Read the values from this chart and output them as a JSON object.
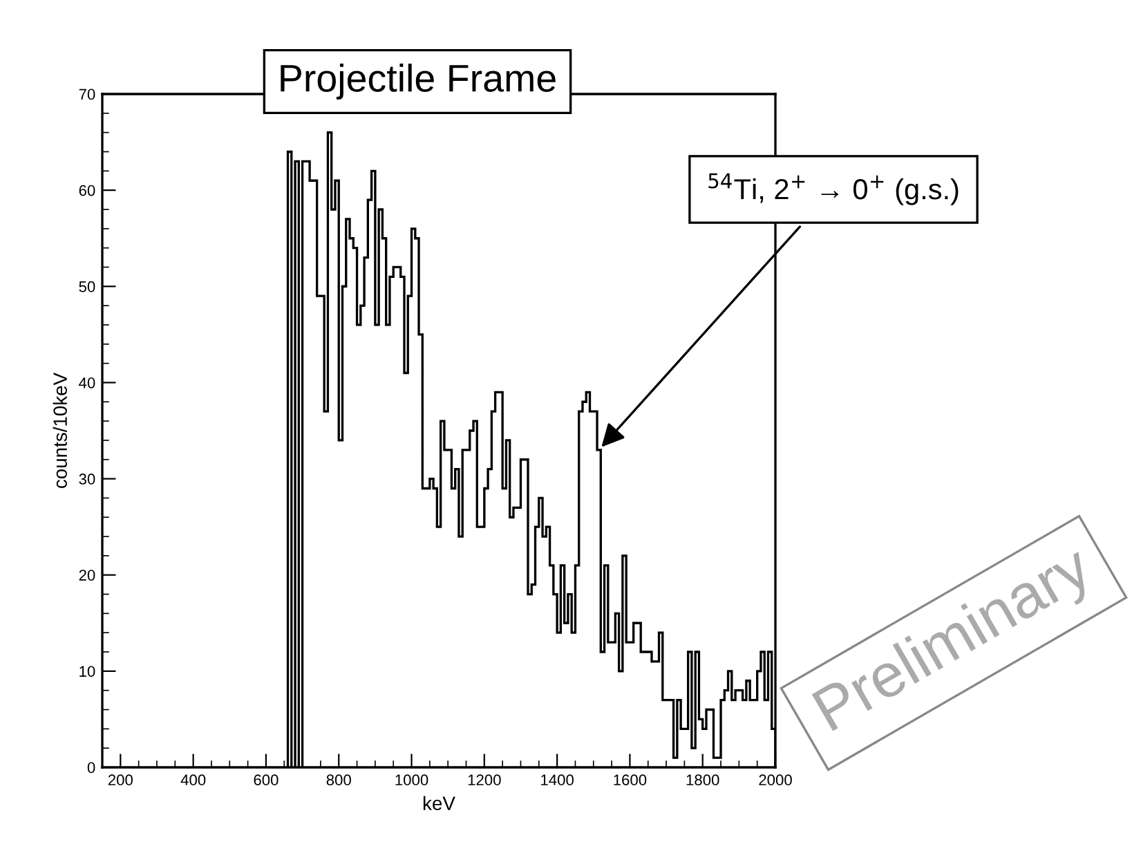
{
  "chart_data": {
    "type": "histogram",
    "title": "Projectile Frame",
    "xlabel": "keV",
    "ylabel": "counts/10keV",
    "bins": [
      660,
      670,
      680,
      690,
      700,
      710,
      720,
      730,
      740,
      750,
      760,
      770,
      780,
      790,
      800,
      810,
      820,
      830,
      840,
      850,
      860,
      870,
      880,
      890,
      900,
      910,
      920,
      930,
      940,
      950,
      960,
      970,
      980,
      990,
      1000,
      1010,
      1020,
      1030,
      1040,
      1050,
      1060,
      1070,
      1080,
      1090,
      1100,
      1110,
      1120,
      1130,
      1140,
      1150,
      1160,
      1170,
      1180,
      1190,
      1200,
      1210,
      1220,
      1230,
      1240,
      1250,
      1260,
      1270,
      1280,
      1290,
      1300,
      1310,
      1320,
      1330,
      1340,
      1350,
      1360,
      1370,
      1380,
      1390,
      1400,
      1410,
      1420,
      1430,
      1440,
      1450,
      1460,
      1470,
      1480,
      1490,
      1500,
      1510,
      1520,
      1530,
      1540,
      1550,
      1560,
      1570,
      1580,
      1590,
      1600,
      1610,
      1620,
      1630,
      1640,
      1650,
      1660,
      1670,
      1680,
      1690,
      1700,
      1710,
      1720,
      1730,
      1740,
      1750,
      1760,
      1770,
      1780,
      1790,
      1800,
      1810,
      1820,
      1830,
      1840,
      1850,
      1860,
      1870,
      1880,
      1890,
      1900,
      1910,
      1920,
      1930,
      1940,
      1950,
      1960,
      1970,
      1980,
      1990,
      2000
    ],
    "values": [
      64,
      null,
      63,
      null,
      63,
      63,
      61,
      61,
      49,
      49,
      37,
      66,
      58,
      61,
      34,
      50,
      57,
      55,
      54,
      46,
      48,
      53,
      59,
      62,
      46,
      58,
      55,
      46,
      51,
      52,
      52,
      51,
      41,
      49,
      56,
      55,
      45,
      29,
      29,
      30,
      29,
      25,
      36,
      33,
      33,
      29,
      31,
      24,
      33,
      33,
      35,
      36,
      25,
      25,
      29,
      31,
      37,
      39,
      39,
      29,
      34,
      26,
      27,
      27,
      32,
      32,
      18,
      19,
      25,
      28,
      24,
      25,
      21,
      18,
      14,
      21,
      15,
      18,
      14,
      21,
      37,
      38,
      39,
      37,
      37,
      33,
      12,
      21,
      13,
      13,
      16,
      10,
      22,
      13,
      13,
      15,
      15,
      12,
      12,
      12,
      11,
      11,
      14,
      7,
      7,
      7,
      1,
      7,
      4,
      4,
      12,
      2,
      12,
      5,
      4,
      6,
      6,
      1,
      1,
      7,
      8,
      10,
      7,
      8,
      8,
      7,
      9,
      7,
      7,
      10,
      12,
      7,
      12,
      4
    ],
    "color": "#000000",
    "xlim": [
      150,
      2000
    ],
    "xticks": [
      200,
      400,
      600,
      800,
      1000,
      1200,
      1400,
      1600,
      1800,
      2000
    ],
    "ylim": [
      0,
      70
    ],
    "yticks": [
      0,
      10,
      20,
      30,
      40,
      50,
      60,
      70
    ],
    "annotations": [
      {
        "text": "$^{54}$Ti, 2$^{+}$ → 0$^{+}$ (g.s.)",
        "x": 1515,
        "y": 33
      },
      "Preliminary"
    ]
  }
}
